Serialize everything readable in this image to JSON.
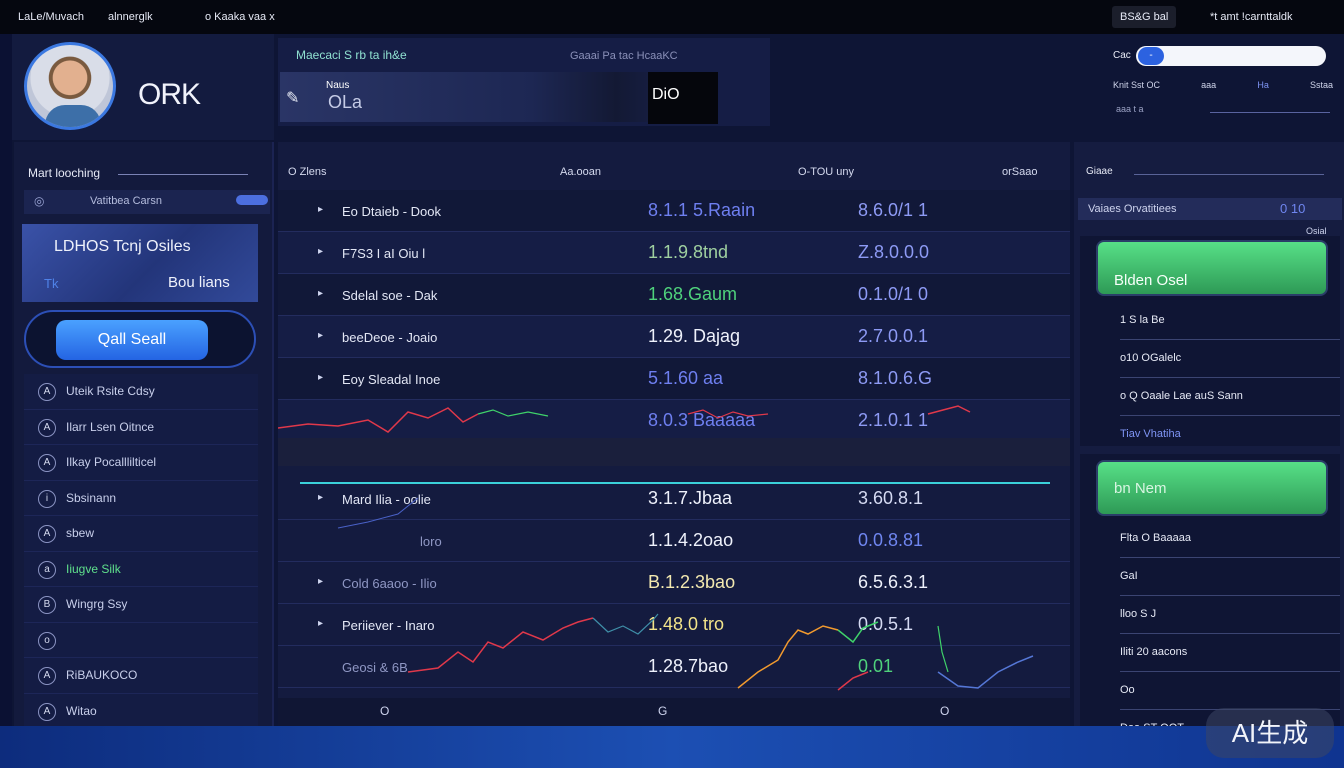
{
  "topbar": {
    "left1": "LaLe/Muvach",
    "left2": "alnnerglk",
    "left3": "o  Kaaka vaa x",
    "right_btn": "BS&G bal",
    "right2": "*t  amt  !carnttaldk"
  },
  "profile": {
    "username": "ORK"
  },
  "header": {
    "left_text": "Maecaci  S  rb  ta  ih&e",
    "right_text": "Gaaai  Pa tac HcaaKC",
    "search_label": "Naus",
    "search_value": "OLa",
    "search_arrow": "N",
    "dark_box": "DiO"
  },
  "top_right": {
    "label": "Cac",
    "knob": "-",
    "row_left": "Knit  Sst  OC",
    "row_mid": "aaa",
    "row_right1": "Ha",
    "row_right2": "Sstaa",
    "row3": "aaa  t  a"
  },
  "sidebar": {
    "title": "Mart looching",
    "sub_label": "Vatitbea Carsn",
    "card_title": "LDHOS  Tcnj  Osiles",
    "card_sub": "Bou lians",
    "card_sub_left": "Tk",
    "cta_label": "Qall Seall",
    "menu": [
      {
        "icon": "A",
        "label": "Uteik  Rsite Cdsy",
        "green": false
      },
      {
        "icon": "A",
        "label": "Ilarr Lsen Oitnce",
        "green": false
      },
      {
        "icon": "A",
        "label": "Ilkay Pocalllilticel",
        "green": false
      },
      {
        "icon": "i",
        "label": "Sbsinann",
        "green": false
      },
      {
        "icon": "A",
        "label": "sbew",
        "green": false
      },
      {
        "icon": "a",
        "label": "Iiugve Silk",
        "green": true
      },
      {
        "icon": "B",
        "label": "Wingrg Ssy",
        "green": false
      },
      {
        "icon": "o",
        "label": "",
        "green": false
      },
      {
        "icon": "A",
        "label": "RiBAUKOCO",
        "green": false
      },
      {
        "icon": "A",
        "label": "Witao",
        "green": false
      }
    ]
  },
  "main": {
    "header": {
      "c1": "O  Zlens",
      "c2": "Aa.ooan",
      "c3": "O-TOU  uny",
      "c4": "orSaao"
    },
    "rows": [
      {
        "name": "Eo  Dtaieb  -  Dook",
        "v1": "8.1.1  5.Raain",
        "v2": "8.6.0/1 1"
      },
      {
        "name": "F7S3  I  aI  Oiu l",
        "v1": "1.1.9.8tnd",
        "v2": "Z.8.0.0.0"
      },
      {
        "name": "Sdelal  soe  -  Dak",
        "v1": "1.68.Gaum",
        "v2": "0.1.0/1 0"
      },
      {
        "name": "beeDeoe  -  Joaio",
        "v1": "1.29.  Dajag",
        "v2": "2.7.0.0.1"
      },
      {
        "name": "Eoy  Sleadal  Inoe",
        "v1": "5.1.60  aa",
        "v2": "8.1.0.6.G"
      },
      {
        "name": "",
        "v1": "8.0.3  Baaaaa",
        "v2": "2.1.0.1 1"
      }
    ],
    "rows2": [
      {
        "name": "Mard  Ilia  -  oolie",
        "v1": "3.1.7.Jbaa",
        "v2": "3.60.8.1"
      },
      {
        "name": "loro",
        "v1": "1.1.4.2oao",
        "v2": "0.0.8.81"
      },
      {
        "name": "Cold  6aaoo  -  Ilio",
        "v1": "B.1.2.3bao",
        "v2": "6.5.6.3.1"
      },
      {
        "name": "Periiever  -  Inaro",
        "v1": "1.48.0 tro",
        "v2": "0.0.5.1"
      },
      {
        "name": "Geosi  &  6B",
        "v1": "1.28.7bao",
        "v2": "0.01"
      }
    ],
    "foot": {
      "f1": "O",
      "f2": "G",
      "f3": "O"
    }
  },
  "right_panel": {
    "title": "Giaae",
    "bar_left": "Vaiaes  Orvatitiees",
    "bar_right": "0 10",
    "small": "Osial",
    "green1": "Blden  Osel",
    "list1": [
      "1 S la  Be",
      "o10 OGalelc",
      "o Q Oaale  Lae auS Sann",
      "Tiav  Vhatiha"
    ],
    "green2": "bn Nem",
    "list2": [
      "Flta  O  Baaaaa",
      "GaI",
      "lloo  S  J",
      "Iliti  20 aacons",
      "Oo",
      "Daa  ST  OOT"
    ]
  },
  "colors": {
    "accent": "#2c62e0",
    "green": "#4fd27c",
    "cyan": "#3bd0d9",
    "chart_red": "#e0384a",
    "chart_green": "#3fd36a",
    "chart_orange": "#f29a2e"
  },
  "badge": "AI生成"
}
